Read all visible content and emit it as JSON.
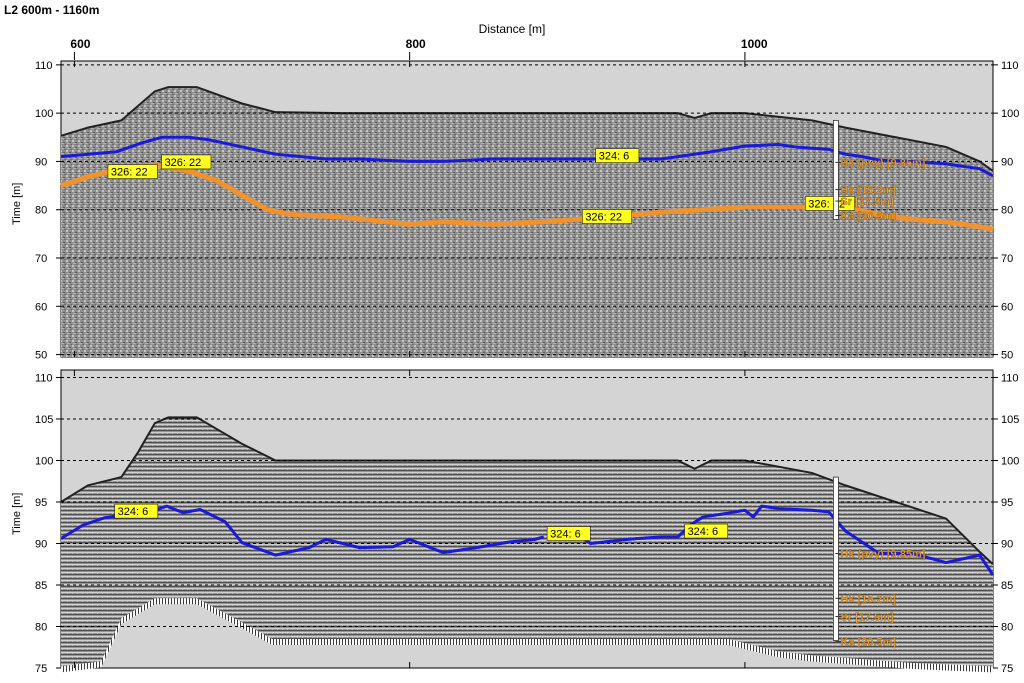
{
  "header": {
    "title": "L2 600m - 1160m"
  },
  "chart_data": [
    {
      "type": "line",
      "panel": "top",
      "xlabel": "Distance [m]",
      "ylabel": "Time [m]",
      "x_ticks": [
        600,
        800,
        1000
      ],
      "y_ticks": [
        50,
        60,
        70,
        80,
        90,
        100,
        110
      ],
      "xlim": [
        592,
        1148
      ],
      "ylim": [
        49.5,
        110.8
      ],
      "surface": [
        [
          592,
          95.3
        ],
        [
          608,
          97
        ],
        [
          628,
          98.5
        ],
        [
          638,
          101.5
        ],
        [
          648,
          104.5
        ],
        [
          656,
          105.4
        ],
        [
          673,
          105.4
        ],
        [
          700,
          102
        ],
        [
          720,
          100.2
        ],
        [
          760,
          100
        ],
        [
          900,
          100
        ],
        [
          960,
          100
        ],
        [
          970,
          99
        ],
        [
          980,
          100
        ],
        [
          1000,
          100
        ],
        [
          1040,
          98.5
        ],
        [
          1060,
          97
        ],
        [
          1090,
          95
        ],
        [
          1120,
          93
        ],
        [
          1140,
          90
        ],
        [
          1148,
          88
        ]
      ],
      "series": [
        {
          "name": "324: 6",
          "color": "#1a1adb",
          "x": [
            592,
            608,
            625,
            640,
            652,
            668,
            680,
            700,
            720,
            750,
            770,
            800,
            820,
            850,
            900,
            950,
            960,
            980,
            1000,
            1020,
            1030,
            1050,
            1060,
            1070,
            1080,
            1100,
            1120,
            1140,
            1148
          ],
          "y": [
            91,
            91.5,
            92,
            93.8,
            95,
            95,
            94.5,
            93,
            91.5,
            90.5,
            90.5,
            90,
            90,
            90.5,
            90.5,
            90.5,
            91,
            92,
            93.2,
            93.5,
            93,
            92.5,
            91.5,
            91,
            90.3,
            90,
            89.5,
            88.5,
            87
          ]
        },
        {
          "name": "326: 22",
          "color": "#f0922e",
          "x": [
            592,
            610,
            628,
            648,
            668,
            685,
            705,
            715,
            730,
            760,
            800,
            820,
            850,
            880,
            900,
            920,
            950,
            1000,
            1030,
            1060,
            1080,
            1100,
            1120,
            1130,
            1148
          ],
          "y": [
            85,
            87,
            88.5,
            89.3,
            88,
            86,
            82,
            80,
            79,
            78.5,
            77,
            77.5,
            77,
            77.5,
            78,
            78.5,
            79.5,
            80.5,
            80.5,
            80.5,
            79,
            78,
            77.5,
            77,
            76
          ]
        }
      ],
      "labels": [
        {
          "text": "324: 6",
          "x": 911,
          "y": 91.2
        },
        {
          "text": "326: 22",
          "x": 620,
          "y": 87.9
        },
        {
          "text": "326: 22",
          "x": 652,
          "y": 89.9
        },
        {
          "text": "326: 22",
          "x": 903,
          "y": 78.6
        },
        {
          "text": "326: 22",
          "x": 1036,
          "y": 81.3
        }
      ],
      "borehole": {
        "x": 1054,
        "top": 98.5,
        "bottom": 78,
        "layers": [
          {
            "label": "Hk (pvy) [9.85m]",
            "y": 89.8
          },
          {
            "label": "Hk [15.2m]",
            "y": 84.2
          },
          {
            "label": "Sr [17.5m]",
            "y": 81.8
          },
          {
            "label": "Ka [20.5m]",
            "y": 78.8
          }
        ]
      }
    },
    {
      "type": "line",
      "panel": "bottom",
      "xlabel": "Distance [m]",
      "ylabel": "Time [m]",
      "x_ticks": [
        600,
        800,
        1000
      ],
      "y_ticks": [
        75,
        80,
        85,
        90,
        95,
        100,
        105,
        110
      ],
      "xlim": [
        592,
        1148
      ],
      "ylim": [
        75,
        110.9
      ],
      "surface": [
        [
          592,
          95
        ],
        [
          608,
          97
        ],
        [
          628,
          98
        ],
        [
          638,
          101
        ],
        [
          648,
          104.5
        ],
        [
          656,
          105.2
        ],
        [
          673,
          105.2
        ],
        [
          700,
          102
        ],
        [
          720,
          100
        ],
        [
          760,
          100
        ],
        [
          960,
          100
        ],
        [
          970,
          99
        ],
        [
          980,
          100
        ],
        [
          1000,
          100
        ],
        [
          1040,
          98.5
        ],
        [
          1060,
          97
        ],
        [
          1090,
          95
        ],
        [
          1120,
          93
        ],
        [
          1140,
          89
        ],
        [
          1148,
          87.5
        ]
      ],
      "lower_edge": [
        [
          592,
          75.2
        ],
        [
          616,
          75.8
        ],
        [
          628,
          81
        ],
        [
          648,
          83.4
        ],
        [
          673,
          83.4
        ],
        [
          700,
          80.5
        ],
        [
          718,
          78.5
        ],
        [
          900,
          78.5
        ],
        [
          990,
          78.5
        ],
        [
          1020,
          77
        ],
        [
          1040,
          76.5
        ],
        [
          1060,
          76.2
        ],
        [
          1100,
          75.6
        ],
        [
          1148,
          75.2
        ]
      ],
      "series": [
        {
          "name": "324: 6",
          "color": "#1a1adb",
          "segment": 1,
          "x": [
            592,
            605,
            618,
            625
          ],
          "y": [
            90.6,
            92.2,
            93.1,
            93.3
          ]
        },
        {
          "name": "324: 6",
          "color": "#1a1adb",
          "segment": 2,
          "x": [
            648,
            655,
            665,
            675,
            690,
            700,
            720,
            740,
            750,
            770,
            790,
            800,
            820,
            840,
            860,
            875,
            880
          ],
          "y": [
            94,
            94.5,
            93.7,
            94.1,
            92.6,
            90.1,
            88.6,
            89.5,
            90.5,
            89.5,
            89.6,
            90.5,
            88.9,
            89.5,
            90.2,
            90.5,
            90.8
          ]
        },
        {
          "name": "324: 6",
          "color": "#1a1adb",
          "segment": 3,
          "x": [
            900,
            908,
            930,
            950,
            960,
            968,
            975,
            985,
            1000,
            1005,
            1010,
            1020,
            1040,
            1050,
            1060,
            1080,
            1100,
            1120,
            1140,
            1148
          ],
          "y": [
            91,
            90,
            90.5,
            90.8,
            90.8,
            92.3,
            93.2,
            93.5,
            94,
            93.2,
            94.5,
            94.2,
            94,
            93.8,
            91.5,
            88.8,
            88.8,
            87.7,
            88.6,
            86.2
          ]
        }
      ],
      "labels": [
        {
          "text": "324: 6",
          "x": 624,
          "y": 93.9
        },
        {
          "text": "324: 6",
          "x": 882,
          "y": 91.2
        },
        {
          "text": "324: 6",
          "x": 964,
          "y": 91.5
        }
      ],
      "borehole": {
        "x": 1054,
        "top": 98,
        "bottom": 78.3,
        "layers": [
          {
            "label": "Hk (pvy) [9.85m]",
            "y": 88.8
          },
          {
            "label": "Hk [15.2m]",
            "y": 83.4
          },
          {
            "label": "Sr [17.5m]",
            "y": 81.2
          },
          {
            "label": "Ka [20.5m]",
            "y": 78.2
          }
        ]
      }
    }
  ]
}
